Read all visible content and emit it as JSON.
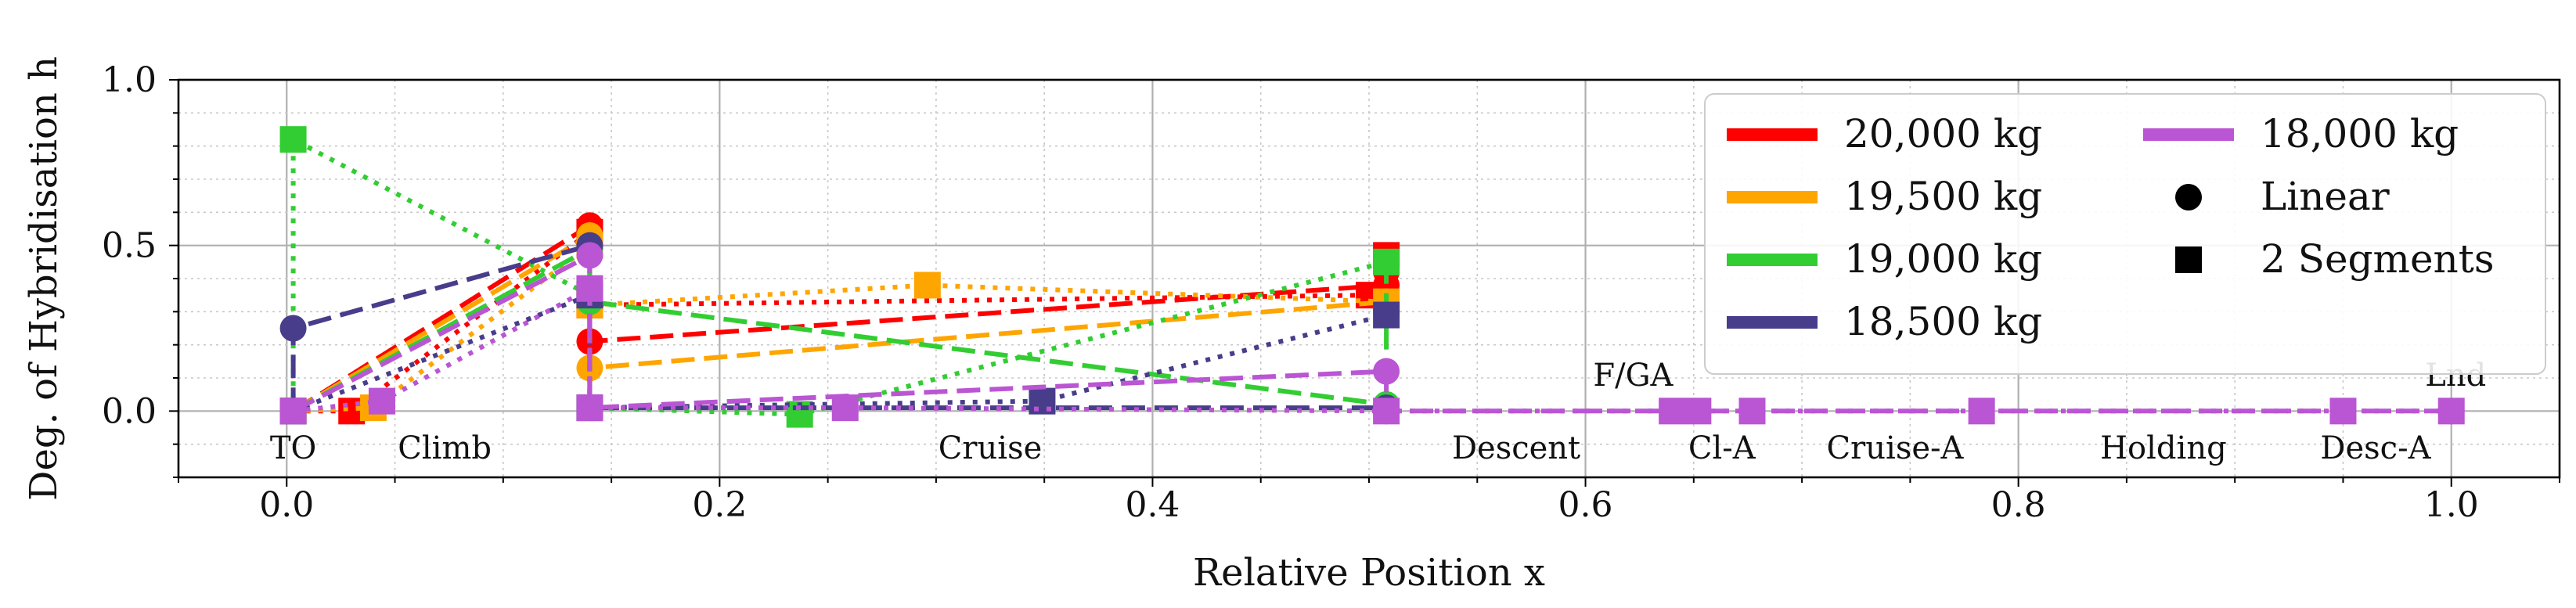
{
  "chart_data": {
    "type": "line",
    "title": "",
    "xlabel": "Relative Position x",
    "ylabel": "Deg. of Hybridisation h",
    "xlim": [
      -0.05,
      1.05
    ],
    "ylim": [
      -0.2,
      1.0
    ],
    "x_ticks": [
      0.0,
      0.2,
      0.4,
      0.6,
      0.8,
      1.0
    ],
    "x_tick_labels": [
      "0.0",
      "0.2",
      "0.4",
      "0.6",
      "0.8",
      "1.0"
    ],
    "y_ticks": [
      0.0,
      0.5,
      1.0
    ],
    "y_tick_labels": [
      "0.0",
      "0.5",
      "1.0"
    ],
    "grid": true,
    "legend_position": "top-right",
    "phase_labels": [
      {
        "text": "TO",
        "x": 0.003,
        "y": -0.11
      },
      {
        "text": "Climb",
        "x": 0.073,
        "y": -0.11
      },
      {
        "text": "Cruise",
        "x": 0.325,
        "y": -0.11
      },
      {
        "text": "Descent",
        "x": 0.568,
        "y": -0.11
      },
      {
        "text": "F/GA",
        "x": 0.622,
        "y": 0.11
      },
      {
        "text": "Cl-A",
        "x": 0.663,
        "y": -0.11
      },
      {
        "text": "Cruise-A",
        "x": 0.743,
        "y": -0.11
      },
      {
        "text": "Holding",
        "x": 0.867,
        "y": -0.11
      },
      {
        "text": "Desc-A",
        "x": 0.965,
        "y": -0.11
      },
      {
        "text": "Lnd",
        "x": 1.002,
        "y": 0.11
      }
    ],
    "legend": {
      "masses": [
        {
          "label": "20,000 kg",
          "color": "#ff0000"
        },
        {
          "label": "19,500 kg",
          "color": "#ffa500"
        },
        {
          "label": "19,000 kg",
          "color": "#32cd32"
        },
        {
          "label": "18,500 kg",
          "color": "#483d8b"
        },
        {
          "label": "18,000 kg",
          "color": "#ba55d3"
        }
      ],
      "methods": [
        {
          "label": "Linear",
          "marker": "circle"
        },
        {
          "label": "2 Segments",
          "marker": "square"
        }
      ]
    },
    "series": [
      {
        "name": "20,000 kg Linear",
        "color": "#ff0000",
        "marker": "circle",
        "dash": "long",
        "x": [
          0.003,
          0.14,
          0.14,
          0.508,
          0.508
        ],
        "y": [
          0.0,
          0.56,
          0.21,
          0.38,
          0.42
        ]
      },
      {
        "name": "20,000 kg 2 Segments",
        "color": "#ff0000",
        "marker": "square",
        "dash": "dot",
        "x": [
          0.003,
          0.03,
          0.14,
          0.14,
          0.5,
          0.508
        ],
        "y": [
          0.0,
          0.0,
          0.54,
          0.32,
          0.35,
          0.47
        ]
      },
      {
        "name": "19,500 kg Linear",
        "color": "#ffa500",
        "marker": "circle",
        "dash": "long",
        "x": [
          0.003,
          0.14,
          0.14,
          0.508,
          0.508
        ],
        "y": [
          0.0,
          0.53,
          0.13,
          0.33,
          0.3
        ]
      },
      {
        "name": "19,500 kg 2 Segments",
        "color": "#ffa500",
        "marker": "square",
        "dash": "dot",
        "x": [
          0.003,
          0.04,
          0.14,
          0.14,
          0.296,
          0.508
        ],
        "y": [
          0.0,
          0.01,
          0.5,
          0.32,
          0.38,
          0.33
        ]
      },
      {
        "name": "19,000 kg Linear",
        "color": "#32cd32",
        "marker": "circle",
        "dash": "long",
        "x": [
          0.003,
          0.14,
          0.14,
          0.508,
          0.508
        ],
        "y": [
          0.0,
          0.49,
          0.33,
          0.02,
          0.45
        ]
      },
      {
        "name": "19,000 kg 2 Segments",
        "color": "#32cd32",
        "marker": "square",
        "dash": "dot",
        "x": [
          0.003,
          0.003,
          0.14,
          0.14,
          0.237,
          0.508
        ],
        "y": [
          0.0,
          0.82,
          0.35,
          0.01,
          -0.01,
          0.45
        ]
      },
      {
        "name": "18,500 kg Linear",
        "color": "#483d8b",
        "marker": "circle",
        "dash": "long",
        "x": [
          0.003,
          0.003,
          0.14,
          0.14,
          0.508
        ],
        "y": [
          0.0,
          0.25,
          0.5,
          0.01,
          0.01
        ]
      },
      {
        "name": "18,500 kg 2 Segments",
        "color": "#483d8b",
        "marker": "square",
        "dash": "dot",
        "x": [
          0.003,
          0.14,
          0.14,
          0.349,
          0.508
        ],
        "y": [
          0.0,
          0.35,
          0.01,
          0.03,
          0.29
        ]
      },
      {
        "name": "18,000 kg Linear",
        "color": "#ba55d3",
        "marker": "circle",
        "dash": "long",
        "x": [
          0.003,
          0.14,
          0.14,
          0.508,
          0.508,
          1.0
        ],
        "y": [
          0.0,
          0.47,
          0.01,
          0.12,
          0.0,
          0.0
        ]
      },
      {
        "name": "18,000 kg 2 Segments",
        "color": "#ba55d3",
        "marker": "square",
        "dash": "dot",
        "x": [
          0.003,
          0.044,
          0.14,
          0.14,
          0.258,
          0.508,
          0.64,
          0.652,
          0.677,
          0.783,
          0.95,
          1.0
        ],
        "y": [
          0.0,
          0.03,
          0.37,
          0.01,
          0.01,
          0.0,
          0.0,
          0.0,
          0.0,
          0.0,
          0.0,
          0.0
        ]
      }
    ]
  }
}
